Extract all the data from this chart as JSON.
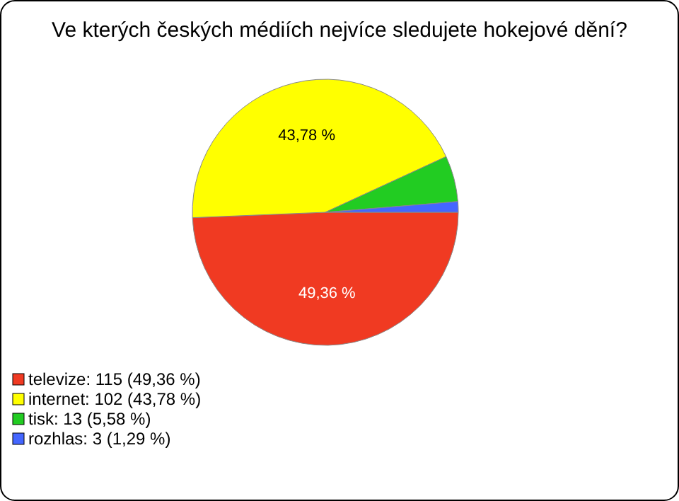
{
  "chart_data": {
    "type": "pie",
    "title": "Ve kterých českých médiích nejvíce sledujete hokejové dění?",
    "categories": [
      "televize: 115 (49,36 %)",
      "internet: 102 (43,78 %)",
      "tisk: 13 (5,58 %)",
      "rozhlas: 3 (1,29 %)"
    ],
    "values": [
      49.36,
      43.78,
      5.58,
      1.29
    ],
    "colors": [
      "#f03a22",
      "#ffff00",
      "#22cc22",
      "#4466ff"
    ],
    "value_labels": [
      "49,36 %",
      "43,78 %",
      null,
      null
    ],
    "legend": "bottom left"
  }
}
